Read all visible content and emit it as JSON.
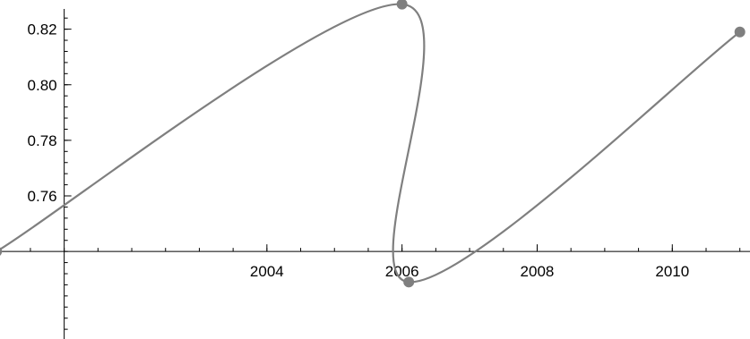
{
  "chart_data": {
    "type": "line",
    "title": "",
    "xlabel": "",
    "ylabel": "",
    "xlim": [
      2000.05,
      2011.15
    ],
    "ylim": [
      0.7085,
      0.8305
    ],
    "x_origin": 2001.0,
    "y_origin": 0.74,
    "x_ticks": [
      {
        "value": 2004,
        "label": "2004"
      },
      {
        "value": 2006,
        "label": "2006"
      },
      {
        "value": 2008,
        "label": "2008"
      },
      {
        "value": 2010,
        "label": "2010"
      }
    ],
    "x_minor_step": 0.5,
    "y_ticks": [
      {
        "value": 0.76,
        "label": "0.76"
      },
      {
        "value": 0.78,
        "label": "0.78"
      },
      {
        "value": 0.8,
        "label": "0.80"
      },
      {
        "value": 0.82,
        "label": "0.82"
      }
    ],
    "y_minor_step": 0.004,
    "grid": false,
    "smooth": true,
    "series": [
      {
        "color": "#7f7f7f",
        "points": [
          {
            "x": 2000.0,
            "y": 0.74
          },
          {
            "x": 2006.0,
            "y": 0.829
          },
          {
            "x": 2006.1,
            "y": 0.729
          },
          {
            "x": 2011.0,
            "y": 0.819
          }
        ]
      }
    ]
  }
}
